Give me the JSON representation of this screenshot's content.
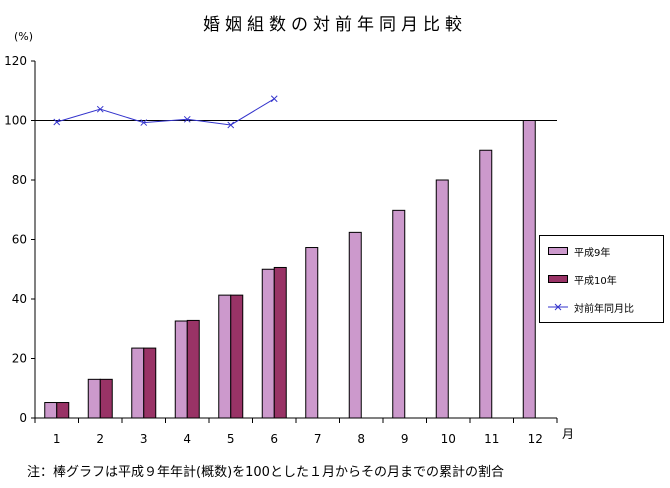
{
  "chart_data": {
    "type": "bar",
    "title": "婚姻組数の対前年同月比較",
    "ylabel": "(%)",
    "xlabel": "月",
    "ylim": [
      0,
      120
    ],
    "yticks": [
      0,
      20,
      40,
      60,
      80,
      100,
      120
    ],
    "grid": false,
    "legend_position": "right",
    "categories": [
      "1",
      "2",
      "3",
      "4",
      "5",
      "6",
      "7",
      "8",
      "9",
      "10",
      "11",
      "12"
    ],
    "series": [
      {
        "name": "平成9年",
        "type": "bar",
        "color": "#cc99cc",
        "values": [
          5.2,
          13.0,
          23.5,
          32.6,
          41.3,
          50.0,
          57.3,
          62.4,
          69.8,
          80.0,
          90.0,
          100.0
        ]
      },
      {
        "name": "平成10年",
        "type": "bar",
        "color": "#993366",
        "values": [
          5.2,
          13.0,
          23.5,
          32.8,
          41.3,
          50.6,
          null,
          null,
          null,
          null,
          null,
          null
        ]
      },
      {
        "name": "対前年同月比",
        "type": "line",
        "color": "#3333cc",
        "values": [
          99.5,
          103.8,
          99.3,
          100.4,
          98.5,
          107.3,
          null,
          null,
          null,
          null,
          null,
          null
        ]
      }
    ],
    "reference_line": 100
  },
  "footnote": "注：棒グラフは平成９年年計(概数)を100とした１月からその月までの累計の割合"
}
